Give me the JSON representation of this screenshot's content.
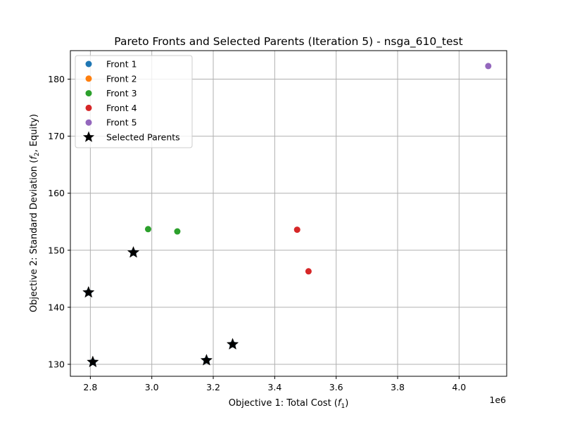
{
  "chart_data": {
    "type": "scatter",
    "title": "Pareto Fronts and Selected Parents (Iteration 5) - nsga_610_test",
    "xlabel": "Objective 1: Total Cost (",
    "xlabel_math": "f",
    "xlabel_sub": "1",
    "xlabel_end": ")",
    "ylabel": "Objective 2: Standard Deviation (",
    "ylabel_math": "f",
    "ylabel_sub": "2",
    "ylabel_end": ", Equity)",
    "x_offset_label": "1e6",
    "xlim": [
      2.735,
      4.155
    ],
    "ylim": [
      127.9,
      185.0
    ],
    "x_ticks": [
      2.8,
      3.0,
      3.2,
      3.4,
      3.6,
      3.8,
      4.0
    ],
    "x_tick_labels": [
      "2.8",
      "3.0",
      "3.2",
      "3.4",
      "3.6",
      "3.8",
      "4.0"
    ],
    "y_ticks": [
      130,
      140,
      150,
      160,
      170,
      180
    ],
    "y_tick_labels": [
      "130",
      "140",
      "150",
      "160",
      "170",
      "180"
    ],
    "grid": true,
    "legend_position": "top-left",
    "series": [
      {
        "name": "Front 1",
        "color": "#1f77b4",
        "marker": "circle",
        "points": [
          [
            2.808,
            130.4
          ],
          [
            3.178,
            130.7
          ],
          [
            3.263,
            133.5
          ],
          [
            2.794,
            142.6
          ],
          [
            2.94,
            149.6
          ]
        ]
      },
      {
        "name": "Front 2",
        "color": "#ff7f0e",
        "marker": "circle",
        "points": []
      },
      {
        "name": "Front 3",
        "color": "#2ca02c",
        "marker": "circle",
        "points": [
          [
            2.988,
            153.7
          ],
          [
            3.083,
            153.3
          ]
        ]
      },
      {
        "name": "Front 4",
        "color": "#d62728",
        "marker": "circle",
        "points": [
          [
            3.473,
            153.6
          ],
          [
            3.51,
            146.3
          ]
        ]
      },
      {
        "name": "Front 5",
        "color": "#9467bd",
        "marker": "circle",
        "points": [
          [
            4.095,
            182.3
          ]
        ]
      },
      {
        "name": "Selected Parents",
        "color": "#000000",
        "marker": "star",
        "points": [
          [
            2.808,
            130.4
          ],
          [
            3.178,
            130.7
          ],
          [
            3.263,
            133.5
          ],
          [
            2.794,
            142.6
          ],
          [
            2.94,
            149.6
          ]
        ]
      }
    ]
  }
}
